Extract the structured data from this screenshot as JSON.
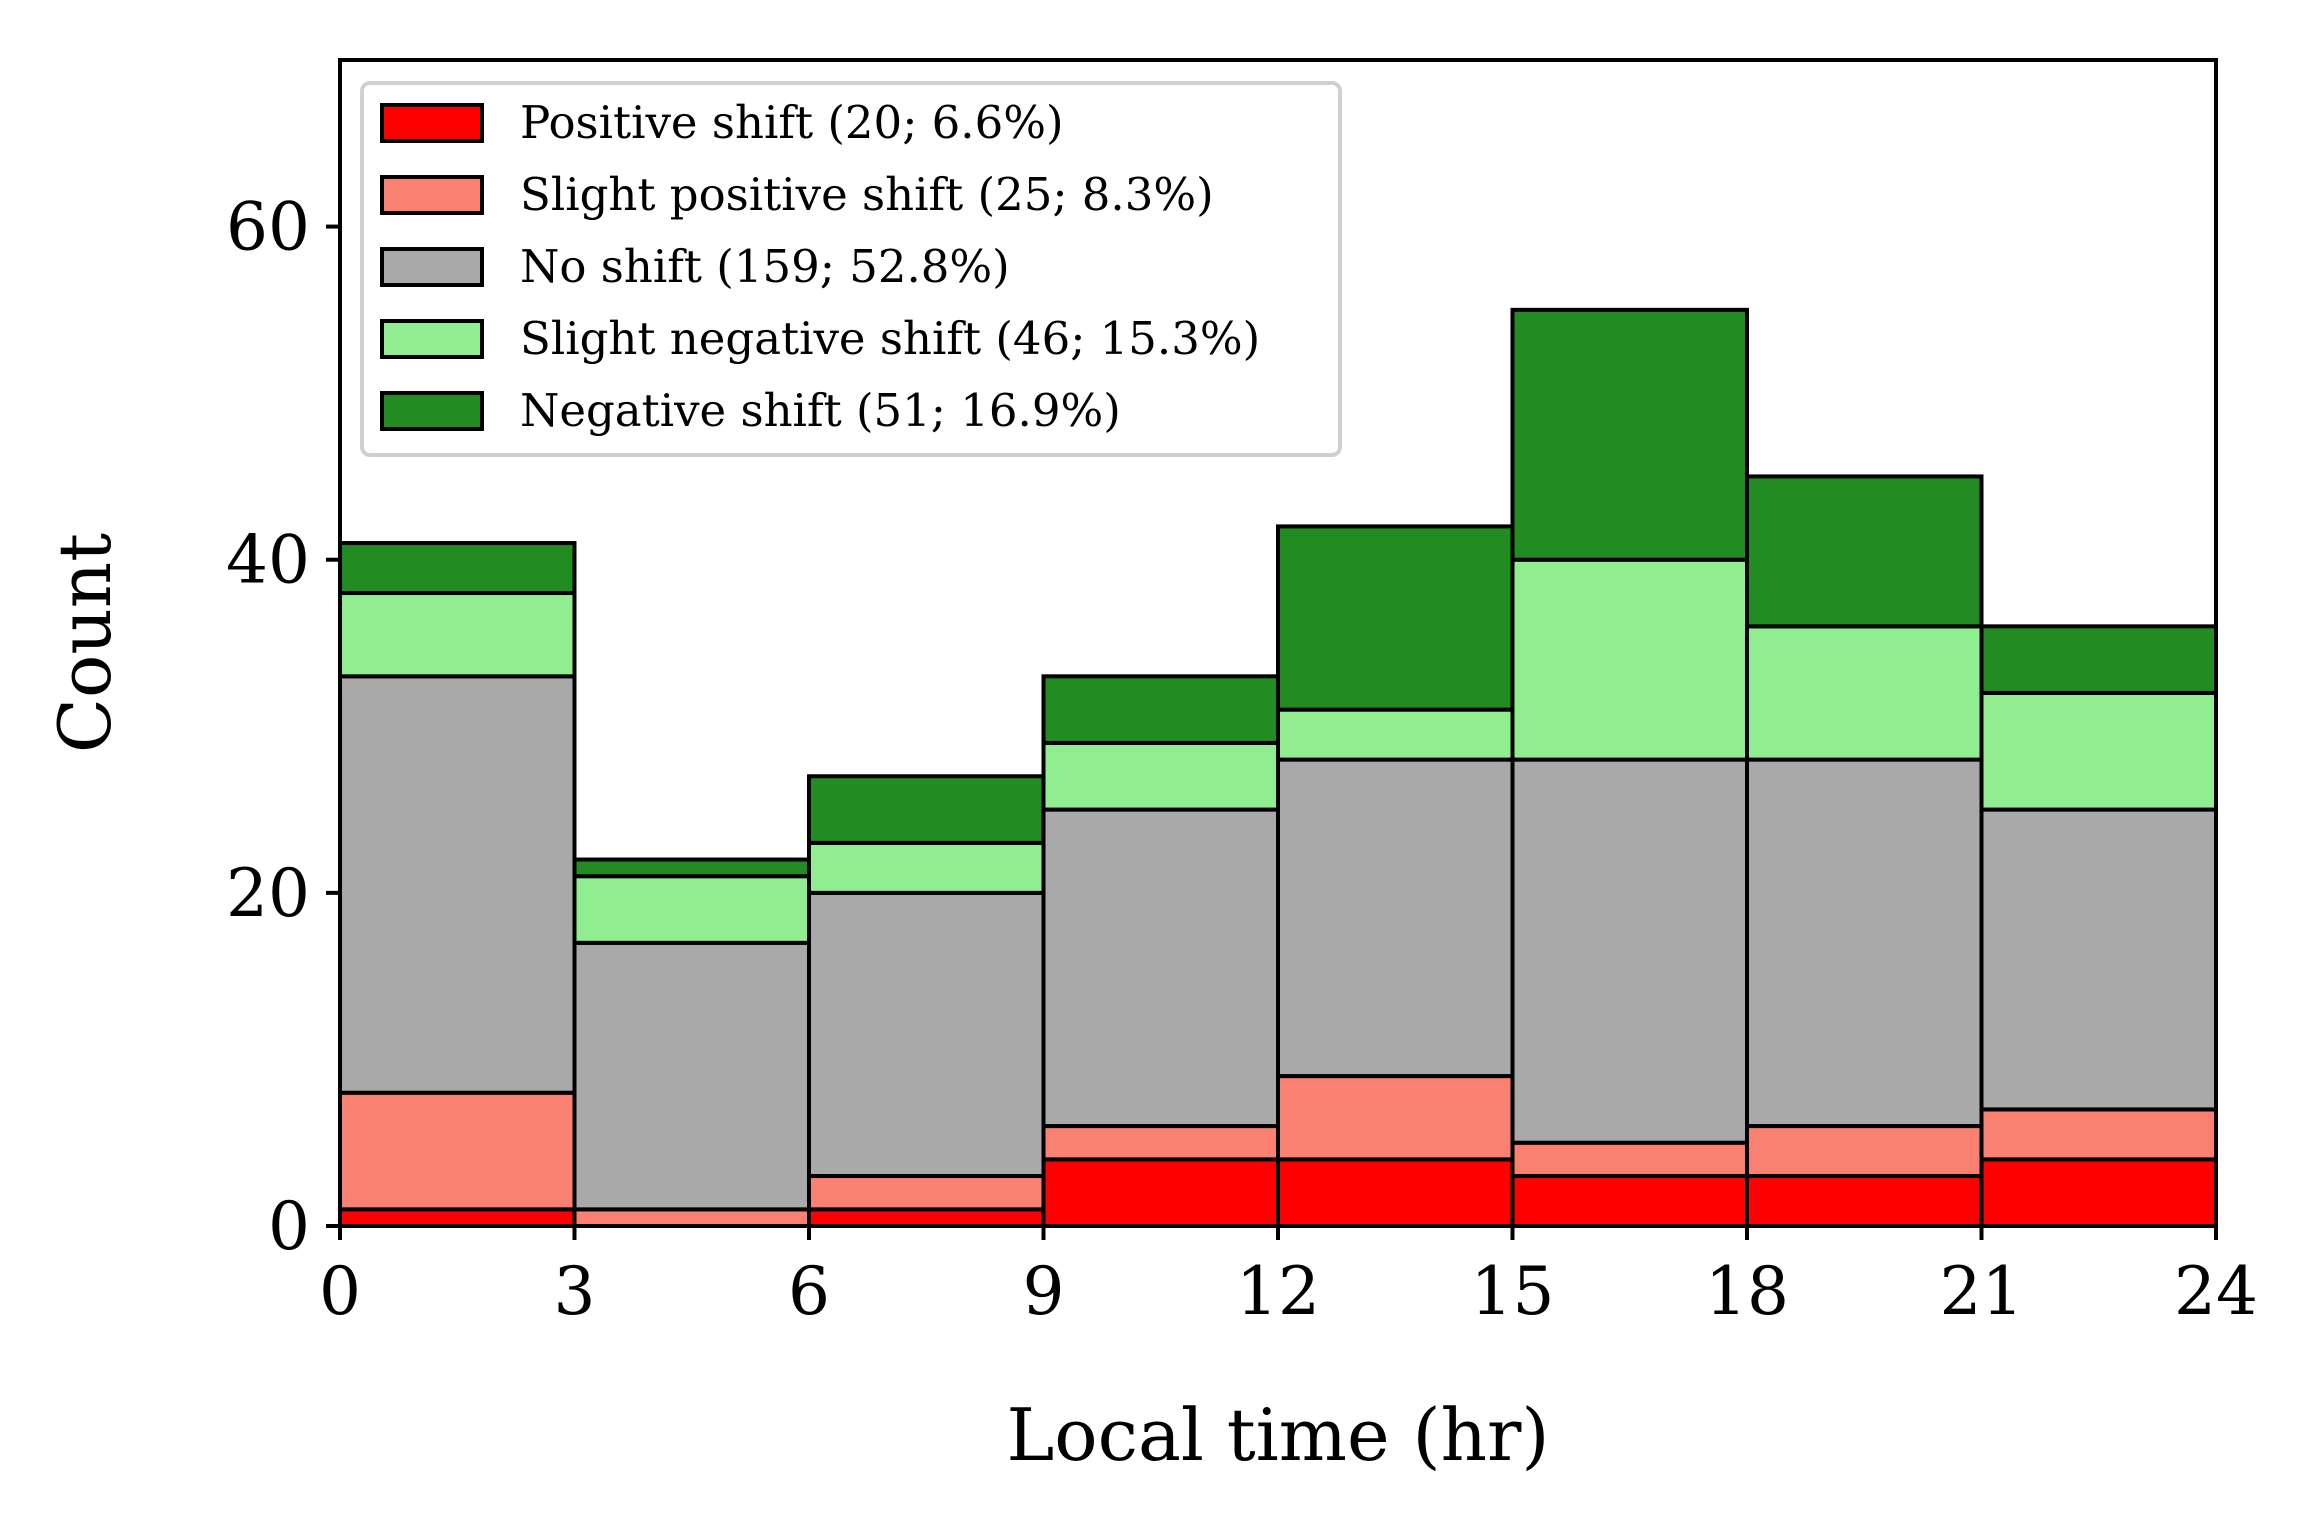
{
  "chart_data": {
    "type": "bar",
    "stacked": true,
    "xlabel": "Local time (hr)",
    "ylabel": "Count",
    "xlim": [
      0,
      24
    ],
    "ylim": [
      0,
      70
    ],
    "bin_width": 3,
    "x_ticks": [
      "0",
      "3",
      "6",
      "9",
      "12",
      "15",
      "18",
      "21",
      "24"
    ],
    "y_ticks": [
      "0",
      "20",
      "40",
      "60"
    ],
    "categories": [
      "0-3",
      "3-6",
      "6-9",
      "9-12",
      "12-15",
      "15-18",
      "18-21",
      "21-24"
    ],
    "legend_position": "top-left",
    "series": [
      {
        "name": "Positive shift (20; 6.6%)",
        "color": "#ff0000",
        "values": [
          1,
          0,
          1,
          4,
          4,
          3,
          3,
          4
        ]
      },
      {
        "name": "Slight positive shift (25; 8.3%)",
        "color": "#fa8072",
        "values": [
          7,
          1,
          2,
          2,
          5,
          2,
          3,
          3
        ]
      },
      {
        "name": "No shift (159; 52.8%)",
        "color": "#a9a9a9",
        "values": [
          25,
          16,
          17,
          19,
          19,
          23,
          22,
          18
        ]
      },
      {
        "name": "Slight negative shift (46; 15.3%)",
        "color": "#90ee90",
        "values": [
          5,
          4,
          3,
          4,
          3,
          12,
          8,
          7
        ]
      },
      {
        "name": "Negative shift (51; 16.9%)",
        "color": "#228b22",
        "values": [
          3,
          1,
          4,
          4,
          11,
          15,
          9,
          4
        ]
      }
    ]
  }
}
